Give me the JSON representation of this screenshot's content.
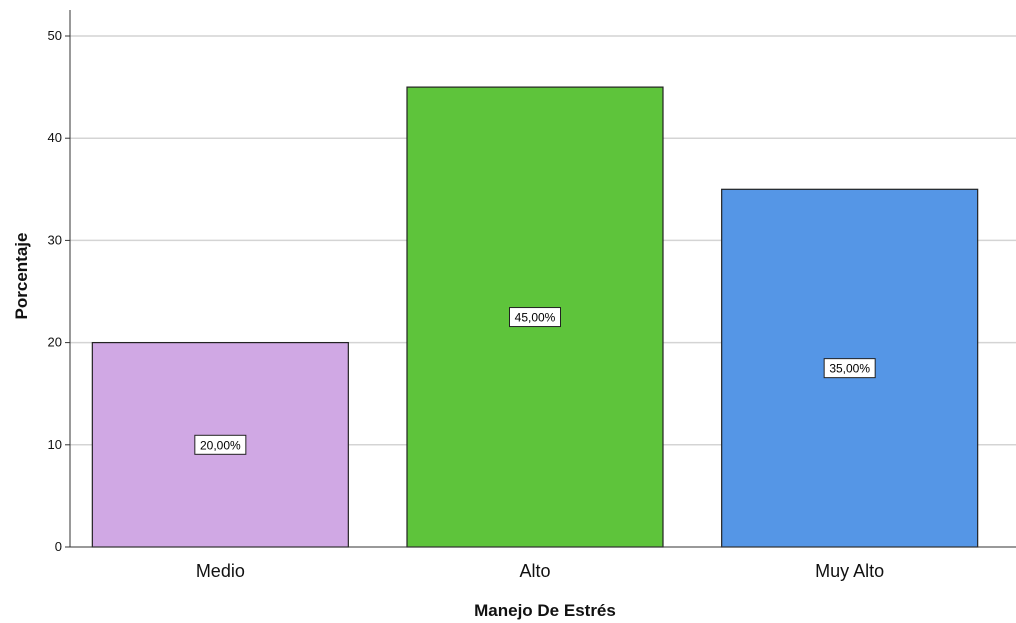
{
  "chart_data": {
    "type": "bar",
    "categories": [
      "Medio",
      "Alto",
      "Muy Alto"
    ],
    "values": [
      20,
      45,
      35
    ],
    "data_labels": [
      "20,00%",
      "45,00%",
      "35,00%"
    ],
    "colors": [
      "#d0a8e4",
      "#5ec43b",
      "#5596e6"
    ],
    "xlabel": "Manejo De Estrés",
    "ylabel": "Porcentaje",
    "ylim": [
      0,
      52
    ],
    "yticks": [
      0,
      10,
      20,
      30,
      40,
      50
    ],
    "grid": true,
    "gridline_color": "#d4d4d4",
    "bar_edge_color": "#222222"
  }
}
